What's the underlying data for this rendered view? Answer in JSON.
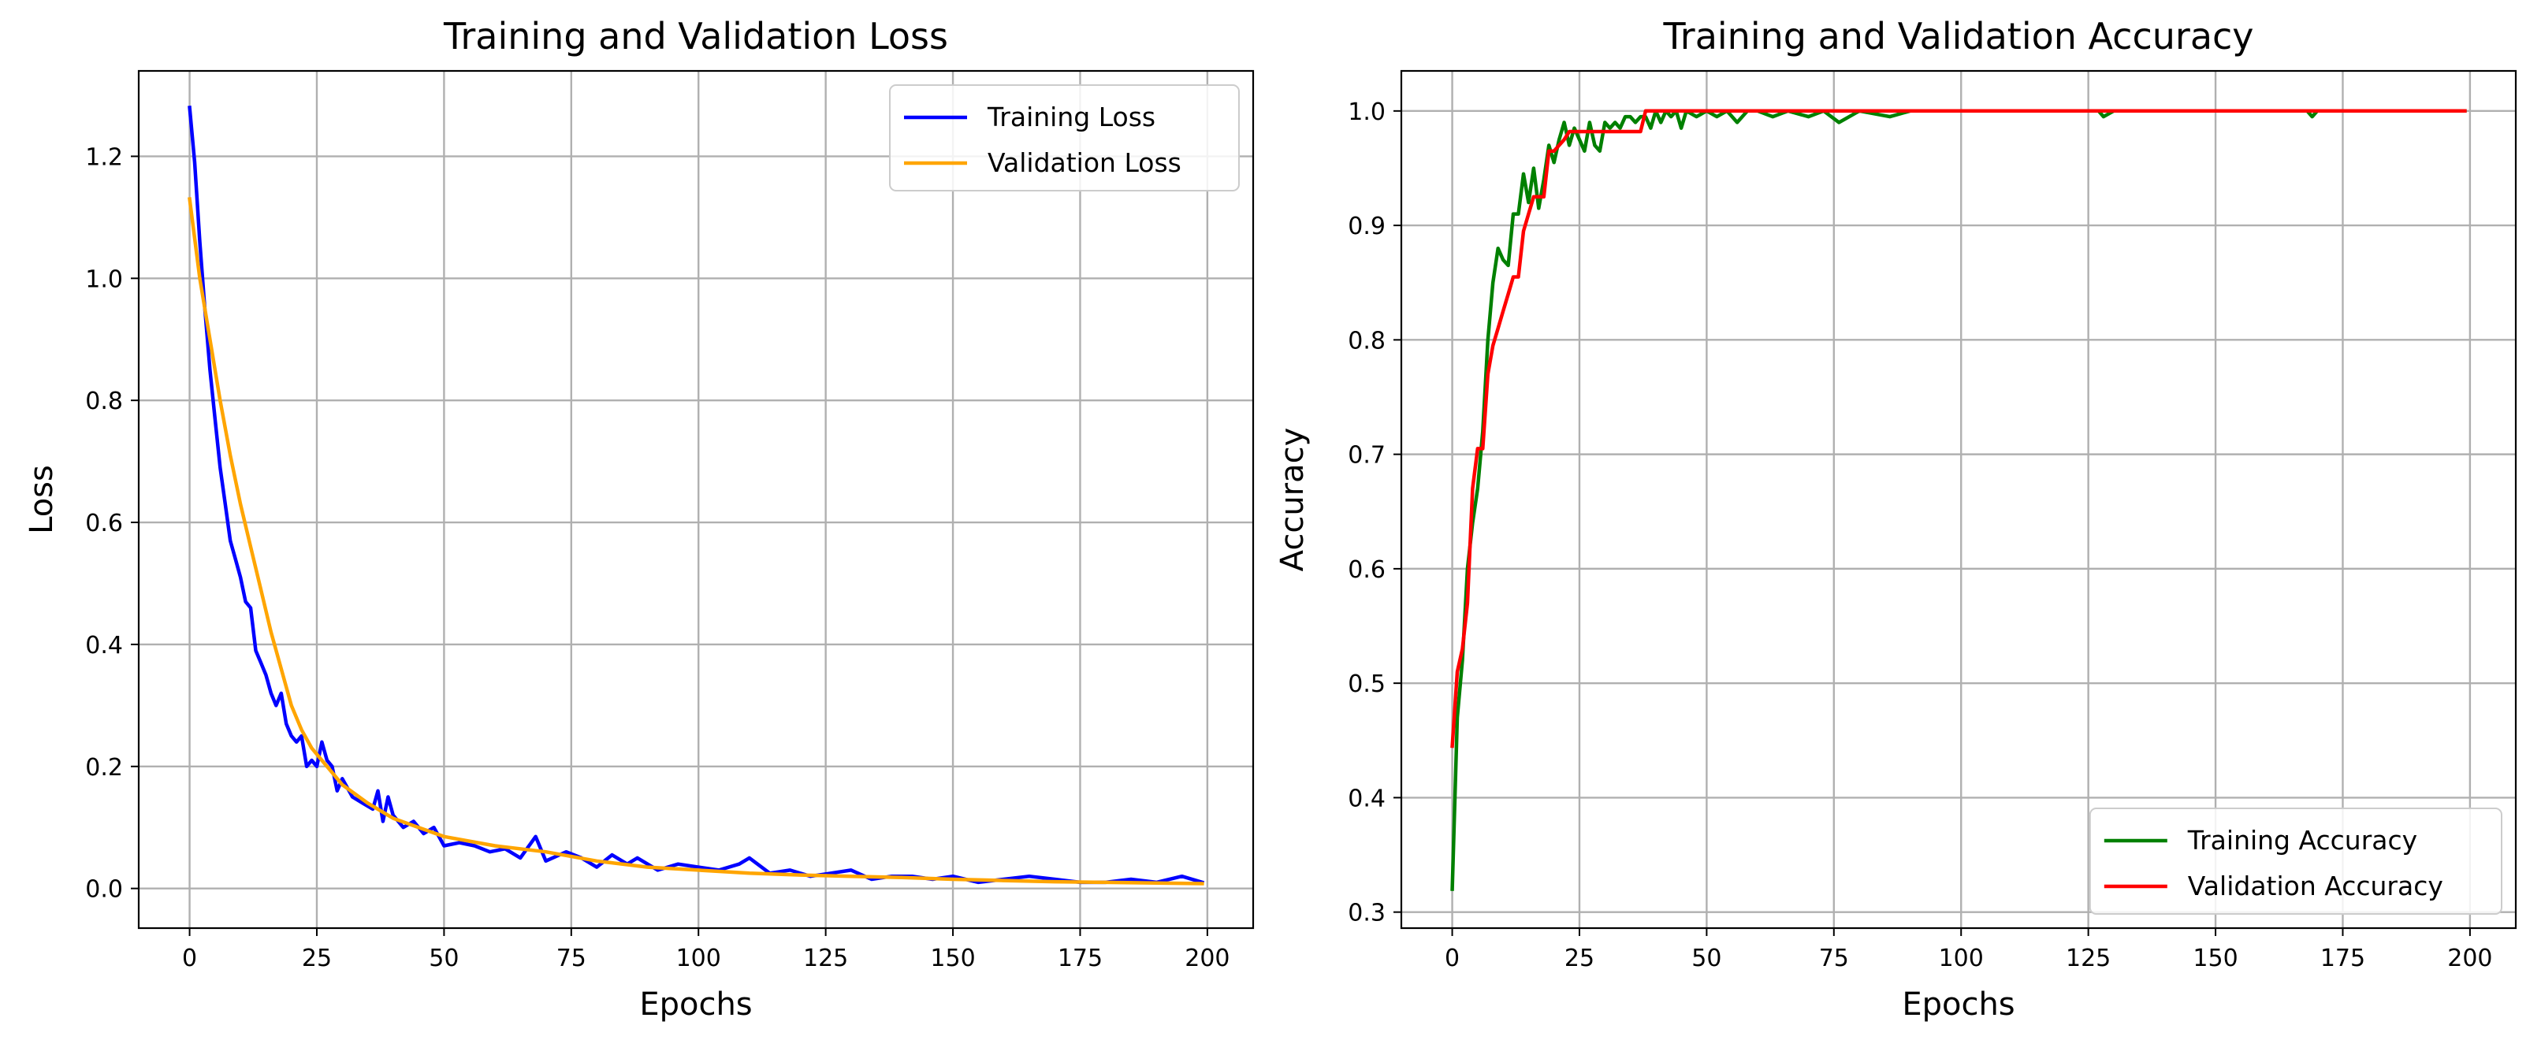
{
  "chart_data": [
    {
      "type": "line",
      "title": "Training and Validation Loss",
      "xlabel": "Epochs",
      "ylabel": "Loss",
      "xlim": [
        -10,
        209
      ],
      "ylim": [
        -0.065,
        1.34
      ],
      "xticks": [
        0,
        25,
        50,
        75,
        100,
        125,
        150,
        175,
        200
      ],
      "xtick_labels": [
        "0",
        "25",
        "50",
        "75",
        "100",
        "125",
        "150",
        "175",
        "200"
      ],
      "yticks": [
        0.0,
        0.2,
        0.4,
        0.6,
        0.8,
        1.0,
        1.2
      ],
      "ytick_labels": [
        "0.0",
        "0.2",
        "0.4",
        "0.6",
        "0.8",
        "1.0",
        "1.2"
      ],
      "grid": true,
      "legend_position": "top-right",
      "series": [
        {
          "name": "Training Loss",
          "color": "#0000ff",
          "x": [
            0,
            1,
            2,
            3,
            4,
            5,
            6,
            7,
            8,
            9,
            10,
            11,
            12,
            13,
            14,
            15,
            16,
            17,
            18,
            19,
            20,
            21,
            22,
            23,
            24,
            25,
            26,
            27,
            28,
            29,
            30,
            32,
            34,
            36,
            37,
            38,
            39,
            40,
            42,
            44,
            46,
            48,
            50,
            53,
            56,
            59,
            62,
            65,
            68,
            70,
            74,
            77,
            80,
            83,
            86,
            88,
            92,
            96,
            100,
            104,
            108,
            110,
            114,
            118,
            122,
            126,
            130,
            134,
            138,
            142,
            146,
            150,
            155,
            160,
            165,
            170,
            175,
            180,
            185,
            190,
            195,
            199
          ],
          "y": [
            1.28,
            1.19,
            1.06,
            0.95,
            0.85,
            0.77,
            0.69,
            0.63,
            0.57,
            0.54,
            0.51,
            0.47,
            0.46,
            0.39,
            0.37,
            0.35,
            0.32,
            0.3,
            0.32,
            0.27,
            0.25,
            0.24,
            0.25,
            0.2,
            0.21,
            0.2,
            0.24,
            0.21,
            0.2,
            0.16,
            0.18,
            0.15,
            0.14,
            0.13,
            0.16,
            0.11,
            0.15,
            0.12,
            0.1,
            0.11,
            0.09,
            0.1,
            0.07,
            0.075,
            0.07,
            0.06,
            0.065,
            0.05,
            0.085,
            0.045,
            0.06,
            0.05,
            0.035,
            0.055,
            0.04,
            0.05,
            0.03,
            0.04,
            0.035,
            0.03,
            0.04,
            0.05,
            0.025,
            0.03,
            0.02,
            0.025,
            0.03,
            0.015,
            0.02,
            0.02,
            0.015,
            0.02,
            0.01,
            0.015,
            0.02,
            0.015,
            0.01,
            0.01,
            0.015,
            0.01,
            0.02,
            0.01
          ]
        },
        {
          "name": "Validation Loss",
          "color": "#ffa500",
          "x": [
            0,
            2,
            4,
            6,
            8,
            10,
            12,
            14,
            16,
            18,
            20,
            22,
            24,
            26,
            28,
            30,
            35,
            40,
            45,
            50,
            60,
            70,
            80,
            90,
            100,
            110,
            120,
            130,
            140,
            150,
            160,
            170,
            180,
            190,
            199
          ],
          "y": [
            1.13,
            1.0,
            0.9,
            0.8,
            0.71,
            0.63,
            0.56,
            0.49,
            0.42,
            0.36,
            0.3,
            0.26,
            0.23,
            0.21,
            0.19,
            0.17,
            0.14,
            0.115,
            0.1,
            0.085,
            0.07,
            0.06,
            0.045,
            0.035,
            0.03,
            0.025,
            0.022,
            0.02,
            0.018,
            0.015,
            0.013,
            0.011,
            0.01,
            0.009,
            0.008
          ]
        }
      ]
    },
    {
      "type": "line",
      "title": "Training and Validation Accuracy",
      "xlabel": "Epochs",
      "ylabel": "Accuracy",
      "xlim": [
        -10,
        209
      ],
      "ylim": [
        0.286,
        1.035
      ],
      "xticks": [
        0,
        25,
        50,
        75,
        100,
        125,
        150,
        175,
        200
      ],
      "xtick_labels": [
        "0",
        "25",
        "50",
        "75",
        "100",
        "125",
        "150",
        "175",
        "200"
      ],
      "yticks": [
        0.3,
        0.4,
        0.5,
        0.6,
        0.7,
        0.8,
        0.9,
        1.0
      ],
      "ytick_labels": [
        "0.3",
        "0.4",
        "0.5",
        "0.6",
        "0.7",
        "0.8",
        "0.9",
        "1.0"
      ],
      "grid": true,
      "legend_position": "bottom-right",
      "series": [
        {
          "name": "Training Accuracy",
          "color": "#008000",
          "x": [
            0,
            1,
            2,
            3,
            4,
            5,
            6,
            7,
            8,
            9,
            10,
            11,
            12,
            13,
            14,
            15,
            16,
            17,
            18,
            19,
            20,
            21,
            22,
            23,
            24,
            25,
            26,
            27,
            28,
            29,
            30,
            31,
            32,
            33,
            34,
            35,
            36,
            37,
            38,
            39,
            40,
            41,
            42,
            43,
            44,
            45,
            46,
            48,
            50,
            52,
            54,
            56,
            58,
            60,
            63,
            66,
            70,
            73,
            76,
            80,
            86,
            90,
            100,
            110,
            120,
            127,
            128,
            130,
            140,
            150,
            160,
            168,
            169,
            170,
            180,
            190,
            199
          ],
          "y": [
            0.32,
            0.47,
            0.52,
            0.6,
            0.64,
            0.67,
            0.72,
            0.8,
            0.85,
            0.88,
            0.87,
            0.865,
            0.91,
            0.91,
            0.945,
            0.92,
            0.95,
            0.915,
            0.94,
            0.97,
            0.955,
            0.975,
            0.99,
            0.97,
            0.985,
            0.975,
            0.965,
            0.99,
            0.97,
            0.965,
            0.99,
            0.985,
            0.99,
            0.985,
            0.995,
            0.995,
            0.99,
            0.995,
            0.995,
            0.985,
            1.0,
            0.99,
            1.0,
            0.995,
            1.0,
            0.985,
            1.0,
            0.995,
            1.0,
            0.995,
            1.0,
            0.99,
            1.0,
            1.0,
            0.995,
            1.0,
            0.995,
            1.0,
            0.99,
            1.0,
            0.995,
            1.0,
            1.0,
            1.0,
            1.0,
            1.0,
            0.995,
            1.0,
            1.0,
            1.0,
            1.0,
            1.0,
            0.995,
            1.0,
            1.0,
            1.0,
            1.0
          ]
        },
        {
          "name": "Validation Accuracy",
          "color": "#ff0000",
          "x": [
            0,
            1,
            2,
            3,
            4,
            5,
            6,
            7,
            8,
            9,
            10,
            11,
            12,
            13,
            14,
            15,
            16,
            17,
            18,
            19,
            20,
            21,
            22,
            23,
            24,
            25,
            30,
            35,
            37,
            38,
            40,
            45,
            50,
            60,
            80,
            100,
            120,
            150,
            180,
            199
          ],
          "y": [
            0.445,
            0.51,
            0.53,
            0.57,
            0.67,
            0.705,
            0.705,
            0.77,
            0.795,
            0.81,
            0.825,
            0.84,
            0.855,
            0.855,
            0.895,
            0.91,
            0.925,
            0.925,
            0.925,
            0.965,
            0.965,
            0.97,
            0.975,
            0.982,
            0.982,
            0.982,
            0.982,
            0.982,
            0.982,
            1.0,
            1.0,
            1.0,
            1.0,
            1.0,
            1.0,
            1.0,
            1.0,
            1.0,
            1.0,
            1.0
          ]
        }
      ]
    }
  ]
}
